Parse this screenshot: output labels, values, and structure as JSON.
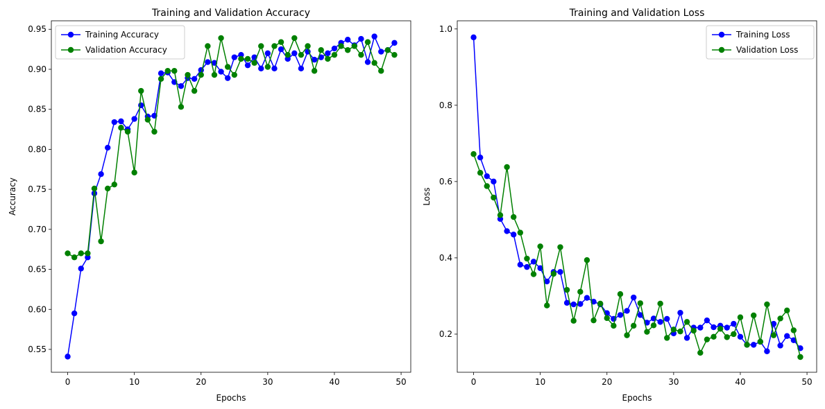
{
  "chart_data": [
    {
      "type": "line",
      "title": "Training and Validation Accuracy",
      "xlabel": "Epochs",
      "ylabel": "Accuracy",
      "xlim": [
        -2.45,
        51.45
      ],
      "ylim": [
        0.5214,
        0.9606
      ],
      "xticks": [
        0,
        10,
        20,
        30,
        40,
        50
      ],
      "xtick_labels": [
        "0",
        "10",
        "20",
        "30",
        "40",
        "50"
      ],
      "yticks": [
        0.55,
        0.6,
        0.65,
        0.7,
        0.75,
        0.8,
        0.85,
        0.9,
        0.95
      ],
      "ytick_labels": [
        "0.55",
        "0.60",
        "0.65",
        "0.70",
        "0.75",
        "0.80",
        "0.85",
        "0.90",
        "0.95"
      ],
      "grid": false,
      "legend": "top-left",
      "series": [
        {
          "name": "Training Accuracy",
          "color": "#0000ff",
          "x": [
            0,
            1,
            2,
            3,
            4,
            5,
            6,
            7,
            8,
            9,
            10,
            11,
            12,
            13,
            14,
            15,
            16,
            17,
            18,
            19,
            20,
            21,
            22,
            23,
            24,
            25,
            26,
            27,
            28,
            29,
            30,
            31,
            32,
            33,
            34,
            35,
            36,
            37,
            38,
            39,
            40,
            41,
            42,
            43,
            44,
            45,
            46,
            47,
            48,
            49
          ],
          "values": [
            0.541,
            0.595,
            0.651,
            0.665,
            0.745,
            0.769,
            0.802,
            0.834,
            0.835,
            0.825,
            0.838,
            0.855,
            0.841,
            0.842,
            0.895,
            0.896,
            0.884,
            0.879,
            0.889,
            0.888,
            0.899,
            0.909,
            0.908,
            0.897,
            0.889,
            0.915,
            0.918,
            0.905,
            0.915,
            0.901,
            0.92,
            0.901,
            0.925,
            0.913,
            0.92,
            0.901,
            0.922,
            0.912,
            0.915,
            0.92,
            0.926,
            0.933,
            0.937,
            0.93,
            0.938,
            0.909,
            0.941,
            0.922,
            0.924,
            0.933
          ]
        },
        {
          "name": "Validation Accuracy",
          "color": "#008000",
          "x": [
            0,
            1,
            2,
            3,
            4,
            5,
            6,
            7,
            8,
            9,
            10,
            11,
            12,
            13,
            14,
            15,
            16,
            17,
            18,
            19,
            20,
            21,
            22,
            23,
            24,
            25,
            26,
            27,
            28,
            29,
            30,
            31,
            32,
            33,
            34,
            35,
            36,
            37,
            38,
            39,
            40,
            41,
            42,
            43,
            44,
            45,
            46,
            47,
            48,
            49
          ],
          "values": [
            0.67,
            0.665,
            0.67,
            0.67,
            0.751,
            0.685,
            0.751,
            0.756,
            0.827,
            0.822,
            0.771,
            0.873,
            0.837,
            0.822,
            0.888,
            0.898,
            0.898,
            0.853,
            0.893,
            0.873,
            0.893,
            0.929,
            0.893,
            0.939,
            0.903,
            0.893,
            0.913,
            0.913,
            0.908,
            0.929,
            0.903,
            0.929,
            0.934,
            0.918,
            0.939,
            0.918,
            0.929,
            0.898,
            0.924,
            0.913,
            0.918,
            0.929,
            0.924,
            0.929,
            0.918,
            0.934,
            0.908,
            0.898,
            0.924,
            0.918
          ]
        }
      ]
    },
    {
      "type": "line",
      "title": "Training and Validation Loss",
      "xlabel": "Epochs",
      "ylabel": "Loss",
      "xlim": [
        -2.45,
        51.45
      ],
      "ylim": [
        0.1,
        1.0214
      ],
      "xticks": [
        0,
        10,
        20,
        30,
        40,
        50
      ],
      "xtick_labels": [
        "0",
        "10",
        "20",
        "30",
        "40",
        "50"
      ],
      "yticks": [
        0.2,
        0.4,
        0.6,
        0.8,
        1.0
      ],
      "ytick_labels": [
        "0.2",
        "0.4",
        "0.6",
        "0.8",
        "1.0"
      ],
      "grid": false,
      "legend": "top-right",
      "series": [
        {
          "name": "Training Loss",
          "color": "#0000ff",
          "x": [
            0,
            1,
            2,
            3,
            4,
            5,
            6,
            7,
            8,
            9,
            10,
            11,
            12,
            13,
            14,
            15,
            16,
            17,
            18,
            19,
            20,
            21,
            22,
            23,
            24,
            25,
            26,
            27,
            28,
            29,
            30,
            31,
            32,
            33,
            34,
            35,
            36,
            37,
            38,
            39,
            40,
            41,
            42,
            43,
            44,
            45,
            46,
            47,
            48,
            49
          ],
          "values": [
            0.978,
            0.663,
            0.614,
            0.6,
            0.502,
            0.47,
            0.461,
            0.382,
            0.376,
            0.39,
            0.373,
            0.338,
            0.363,
            0.363,
            0.282,
            0.278,
            0.279,
            0.295,
            0.285,
            0.278,
            0.255,
            0.24,
            0.25,
            0.261,
            0.296,
            0.25,
            0.23,
            0.241,
            0.232,
            0.24,
            0.202,
            0.256,
            0.19,
            0.217,
            0.217,
            0.236,
            0.218,
            0.222,
            0.217,
            0.227,
            0.193,
            0.172,
            0.172,
            0.18,
            0.155,
            0.227,
            0.17,
            0.195,
            0.184,
            0.163
          ]
        },
        {
          "name": "Validation Loss",
          "color": "#008000",
          "x": [
            0,
            1,
            2,
            3,
            4,
            5,
            6,
            7,
            8,
            9,
            10,
            11,
            12,
            13,
            14,
            15,
            16,
            17,
            18,
            19,
            20,
            21,
            22,
            23,
            24,
            25,
            26,
            27,
            28,
            29,
            30,
            31,
            32,
            33,
            34,
            35,
            36,
            37,
            38,
            39,
            40,
            41,
            42,
            43,
            44,
            45,
            46,
            47,
            48,
            49
          ],
          "values": [
            0.672,
            0.623,
            0.588,
            0.558,
            0.512,
            0.638,
            0.507,
            0.466,
            0.398,
            0.357,
            0.43,
            0.275,
            0.358,
            0.428,
            0.316,
            0.235,
            0.311,
            0.394,
            0.236,
            0.28,
            0.242,
            0.222,
            0.305,
            0.197,
            0.222,
            0.281,
            0.206,
            0.223,
            0.28,
            0.19,
            0.212,
            0.207,
            0.232,
            0.209,
            0.151,
            0.186,
            0.193,
            0.214,
            0.192,
            0.2,
            0.244,
            0.172,
            0.249,
            0.18,
            0.278,
            0.197,
            0.241,
            0.262,
            0.21,
            0.14
          ]
        }
      ]
    }
  ]
}
